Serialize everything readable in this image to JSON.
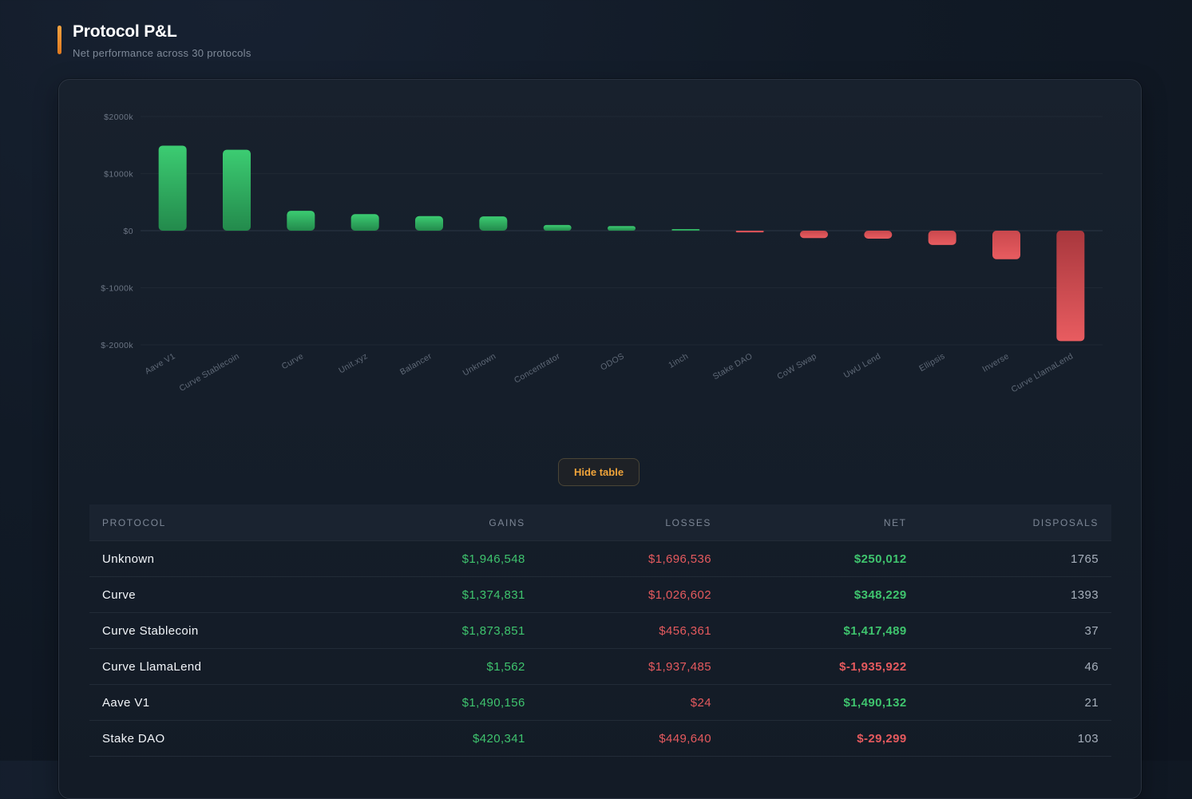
{
  "header": {
    "title": "Protocol P&L",
    "subtitle": "Net performance across 30 protocols"
  },
  "colors": {
    "accent": "#f0a43a",
    "gain": "#3fc46e",
    "loss": "#e55a5e"
  },
  "chart_data": {
    "type": "bar",
    "categories": [
      "Aave V1",
      "Curve Stablecoin",
      "Curve",
      "Unit.xyz",
      "Balancer",
      "Unknown",
      "Concentrator",
      "ODOS",
      "1inch",
      "Stake DAO",
      "CoW Swap",
      "UwU Lend",
      "Ellipsis",
      "Inverse",
      "Curve LlamaLend"
    ],
    "values": [
      1490132,
      1417489,
      348229,
      290000,
      255000,
      250012,
      100000,
      80000,
      20000,
      -29299,
      -130000,
      -140000,
      -250000,
      -500000,
      -1935922
    ],
    "yticks": [
      2000000,
      1000000,
      0,
      -1000000,
      -2000000
    ],
    "ytick_labels": [
      "$2000k",
      "$1000k",
      "$0",
      "$-1000k",
      "$-2000k"
    ],
    "ylim": [
      -2000000,
      2000000
    ],
    "grid": true
  },
  "toggle": {
    "label": "Hide table"
  },
  "table": {
    "columns": [
      "PROTOCOL",
      "GAINS",
      "LOSSES",
      "NET",
      "DISPOSALS"
    ],
    "rows": [
      {
        "protocol": "Unknown",
        "gains": "$1,946,548",
        "losses": "$1,696,536",
        "net": "$250,012",
        "net_sign": "pos",
        "disposals": "1765"
      },
      {
        "protocol": "Curve",
        "gains": "$1,374,831",
        "losses": "$1,026,602",
        "net": "$348,229",
        "net_sign": "pos",
        "disposals": "1393"
      },
      {
        "protocol": "Curve Stablecoin",
        "gains": "$1,873,851",
        "losses": "$456,361",
        "net": "$1,417,489",
        "net_sign": "pos",
        "disposals": "37"
      },
      {
        "protocol": "Curve LlamaLend",
        "gains": "$1,562",
        "losses": "$1,937,485",
        "net": "$-1,935,922",
        "net_sign": "neg",
        "disposals": "46"
      },
      {
        "protocol": "Aave V1",
        "gains": "$1,490,156",
        "losses": "$24",
        "net": "$1,490,132",
        "net_sign": "pos",
        "disposals": "21"
      },
      {
        "protocol": "Stake DAO",
        "gains": "$420,341",
        "losses": "$449,640",
        "net": "$-29,299",
        "net_sign": "neg",
        "disposals": "103"
      }
    ]
  }
}
